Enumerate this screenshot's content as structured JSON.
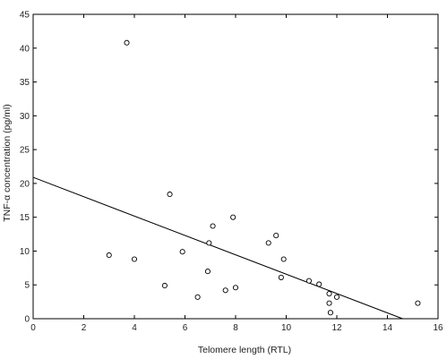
{
  "chart_data": {
    "type": "scatter",
    "title": "",
    "xlabel": "Telomere length (RTL)",
    "ylabel": "TNF-α concentration (pg/ml)",
    "xlim": [
      0,
      16
    ],
    "ylim": [
      0,
      45
    ],
    "xticks": [
      "0",
      "2",
      "4",
      "6",
      "8",
      "10",
      "12",
      "14",
      "16"
    ],
    "yticks": [
      "0",
      "5",
      "10",
      "15",
      "20",
      "25",
      "30",
      "35",
      "40",
      "45"
    ],
    "grid": false,
    "legend": "none",
    "points": [
      {
        "x": 3.0,
        "y": 9.4
      },
      {
        "x": 3.7,
        "y": 40.8
      },
      {
        "x": 4.0,
        "y": 8.8
      },
      {
        "x": 5.2,
        "y": 4.9
      },
      {
        "x": 5.4,
        "y": 18.4
      },
      {
        "x": 5.9,
        "y": 9.9
      },
      {
        "x": 6.5,
        "y": 3.2
      },
      {
        "x": 6.9,
        "y": 7.0
      },
      {
        "x": 6.95,
        "y": 11.2
      },
      {
        "x": 7.1,
        "y": 13.7
      },
      {
        "x": 7.6,
        "y": 4.2
      },
      {
        "x": 7.9,
        "y": 15.0
      },
      {
        "x": 8.0,
        "y": 4.6
      },
      {
        "x": 9.3,
        "y": 11.2
      },
      {
        "x": 9.6,
        "y": 12.3
      },
      {
        "x": 9.8,
        "y": 6.1
      },
      {
        "x": 9.9,
        "y": 8.8
      },
      {
        "x": 10.9,
        "y": 5.6
      },
      {
        "x": 11.3,
        "y": 5.1
      },
      {
        "x": 11.7,
        "y": 3.7
      },
      {
        "x": 11.7,
        "y": 2.3
      },
      {
        "x": 11.75,
        "y": 0.9
      },
      {
        "x": 12.0,
        "y": 3.2
      },
      {
        "x": 15.2,
        "y": 2.3
      }
    ],
    "regression_line": {
      "x1": 0,
      "y1": 20.9,
      "x2": 14.6,
      "y2": 0
    }
  },
  "colors": {
    "axis": "#000000",
    "marker_stroke": "#000000",
    "marker_fill": "#ffffff",
    "line": "#000000"
  }
}
